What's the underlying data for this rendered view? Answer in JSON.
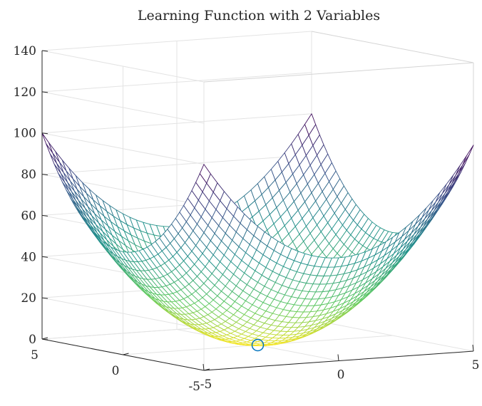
{
  "chart_data": {
    "type": "surface-mesh",
    "title": "Learning Function with 2 Variables",
    "function": "z = 2*x^2 + 2*y^2",
    "x": {
      "min": -5,
      "max": 5,
      "ticks": [
        -5,
        0,
        5
      ],
      "tick_labels": [
        "-5",
        "0",
        "5"
      ]
    },
    "y": {
      "min": -5,
      "max": 5,
      "ticks": [
        -5,
        0,
        5
      ],
      "tick_labels": [
        "-5",
        "0",
        "5"
      ]
    },
    "z": {
      "min": 0,
      "max": 140,
      "ticks": [
        0,
        20,
        40,
        60,
        80,
        100,
        120,
        140
      ],
      "tick_labels": [
        "0",
        "20",
        "40",
        "60",
        "80",
        "100",
        "120",
        "140"
      ]
    },
    "grid_steps": 40,
    "colormap": [
      "#440154",
      "#3b528b",
      "#21918c",
      "#5ec962",
      "#fde725"
    ],
    "colormap_name": "parula",
    "marker": {
      "x": 0,
      "y": 0,
      "z": 0,
      "shape": "circle",
      "color": "#0072bd"
    },
    "grid": true,
    "view": "3d-box"
  }
}
